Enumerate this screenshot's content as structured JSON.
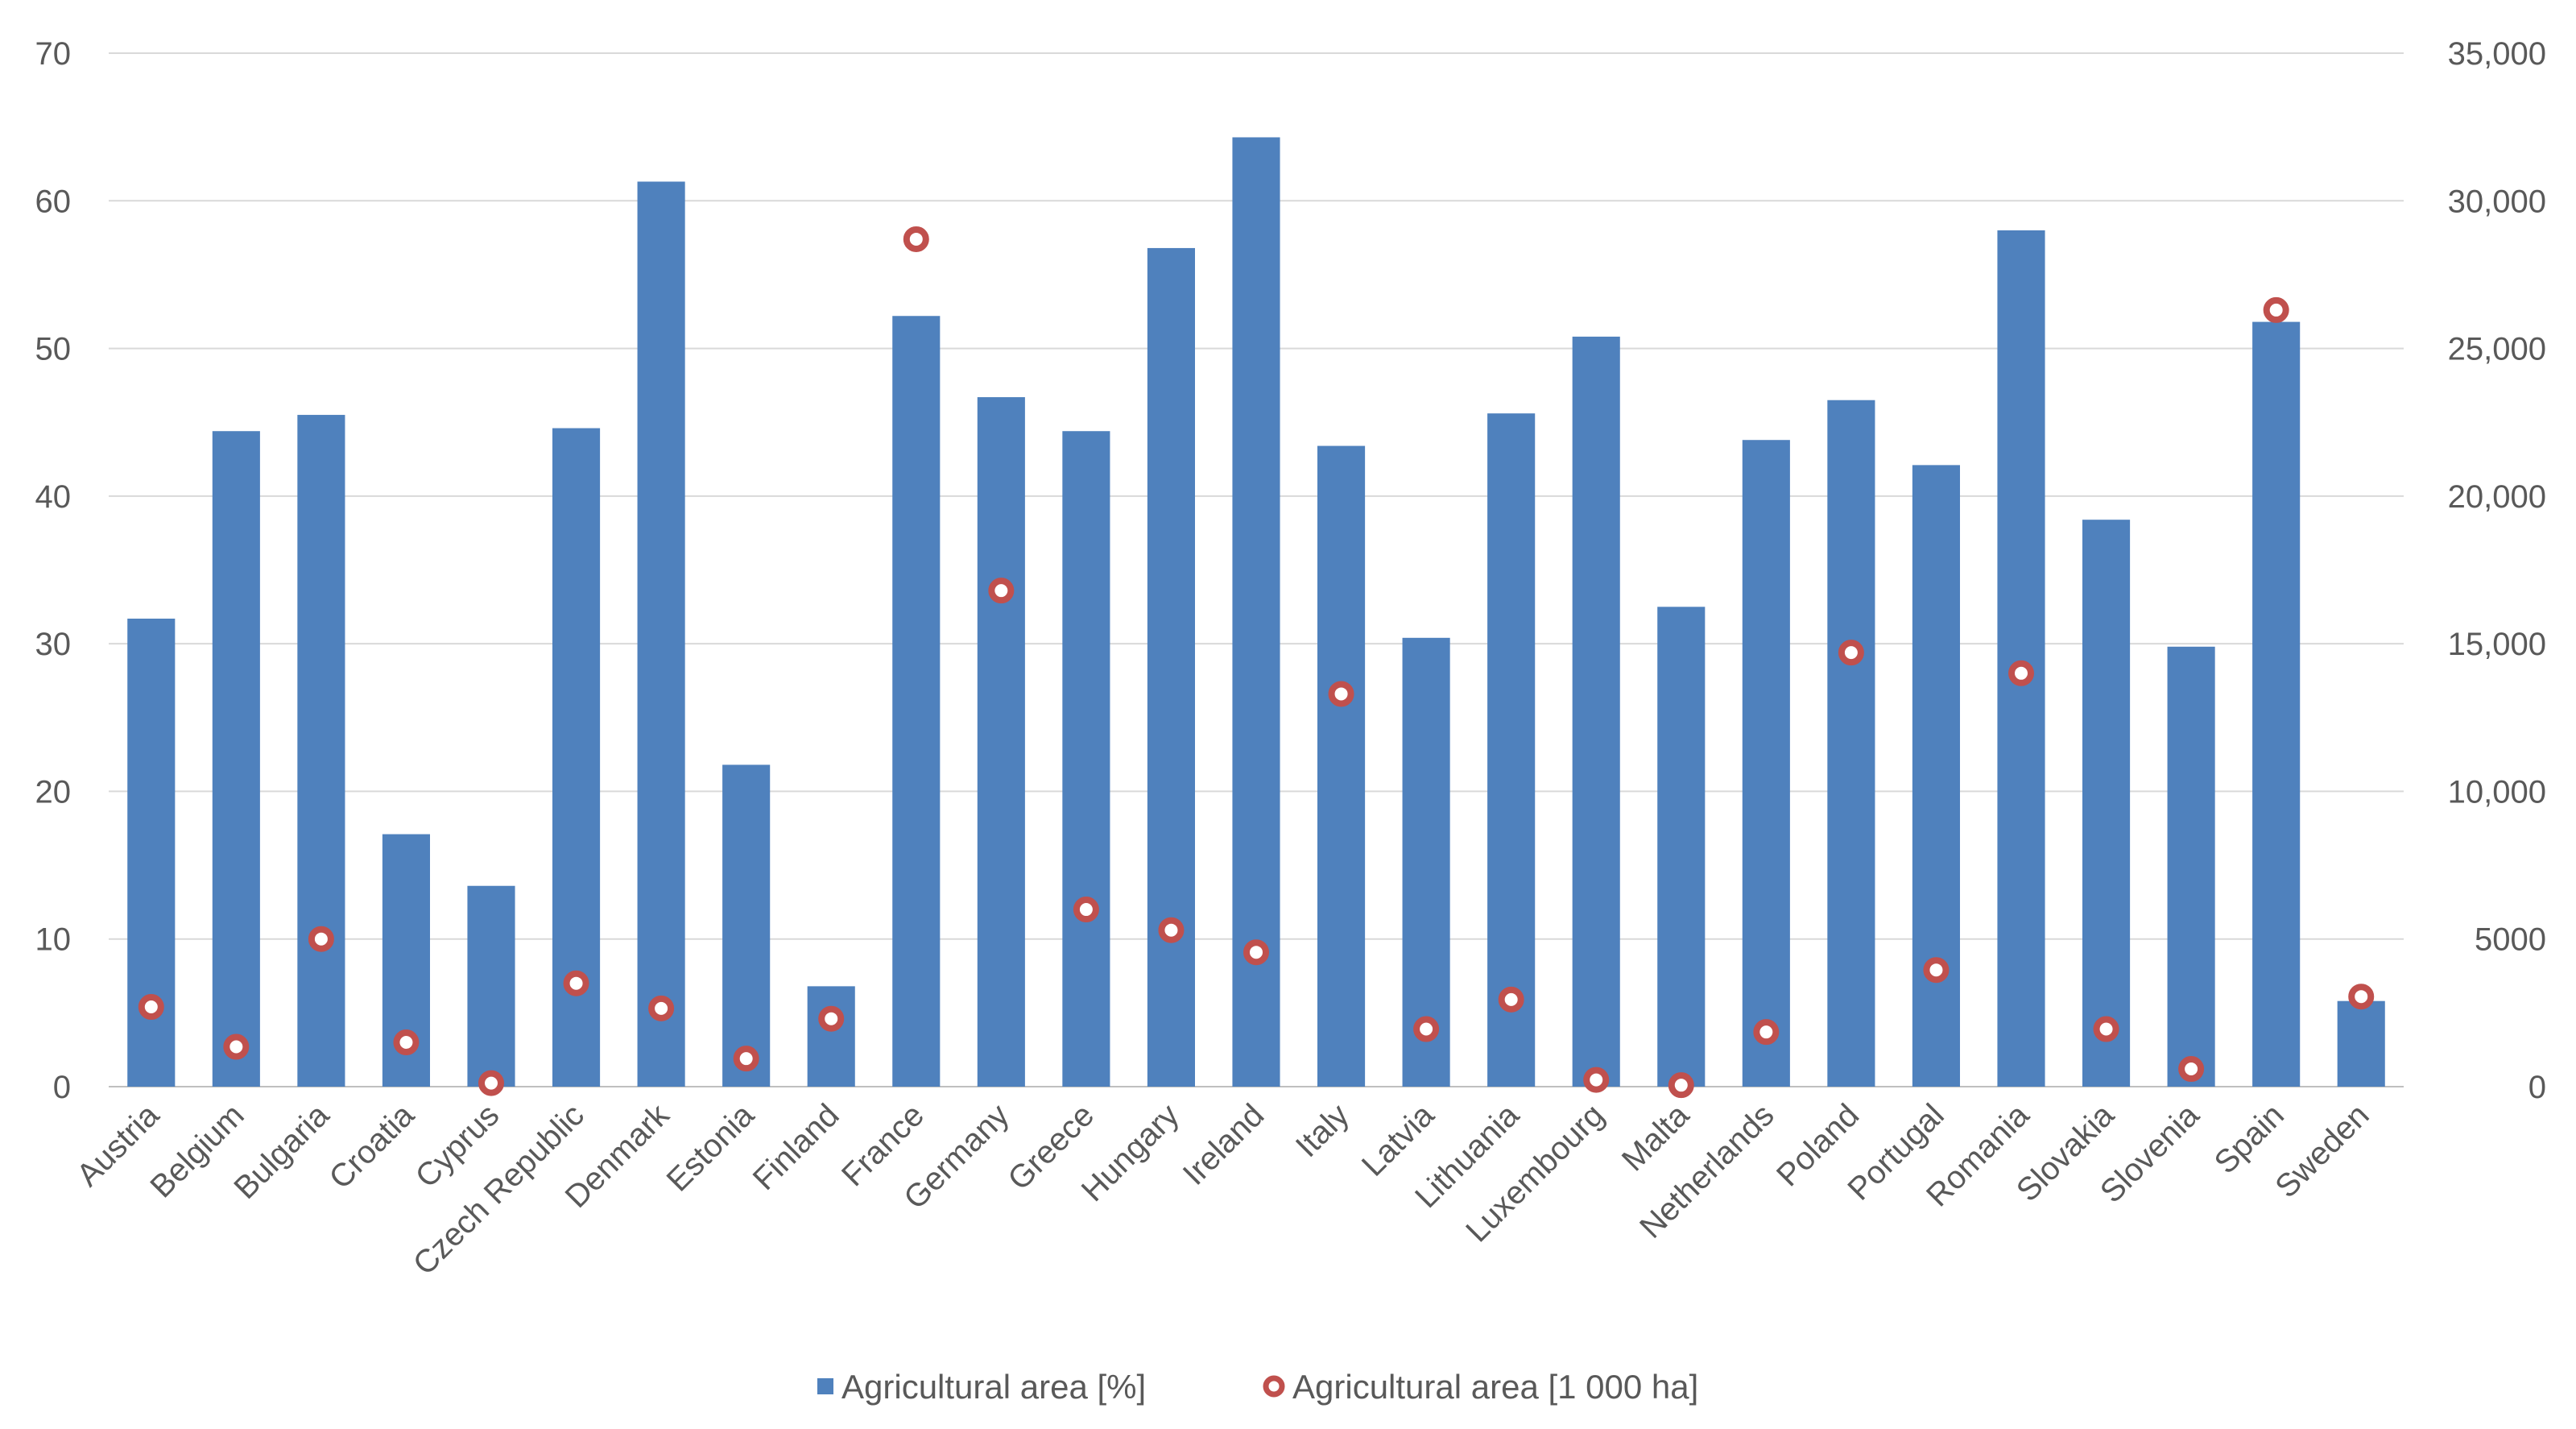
{
  "chart_data": {
    "type": "bar",
    "categories": [
      "Austria",
      "Belgium",
      "Bulgaria",
      "Croatia",
      "Cyprus",
      "Czech Republic",
      "Denmark",
      "Estonia",
      "Finland",
      "France",
      "Germany",
      "Greece",
      "Hungary",
      "Ireland",
      "Italy",
      "Latvia",
      "Lithuania",
      "Luxembourg",
      "Malta",
      "Netherlands",
      "Poland",
      "Portugal",
      "Romania",
      "Slovakia",
      "Slovenia",
      "Spain",
      "Sweden"
    ],
    "series": [
      {
        "name": "Agricultural area [%]",
        "type": "bar",
        "axis": "left",
        "color": "#4f81bd",
        "values": [
          31.7,
          44.4,
          45.5,
          17.1,
          13.6,
          44.6,
          61.3,
          21.8,
          6.8,
          52.2,
          46.7,
          44.4,
          56.8,
          64.3,
          43.4,
          30.4,
          45.6,
          50.8,
          32.5,
          43.8,
          46.5,
          42.1,
          58.0,
          38.4,
          29.8,
          51.8,
          5.8
        ]
      },
      {
        "name": "Agricultural area [1 000 ha]",
        "type": "scatter",
        "axis": "right",
        "color": "#c0504d",
        "values": [
          2700,
          1350,
          5000,
          1500,
          120,
          3500,
          2650,
          950,
          2300,
          28700,
          16800,
          6000,
          5300,
          4550,
          13300,
          1950,
          2950,
          230,
          50,
          1850,
          14700,
          3950,
          14000,
          1950,
          600,
          26300,
          3050
        ]
      }
    ],
    "y_left": {
      "ylim": [
        0,
        70
      ],
      "ticks": [
        0,
        10,
        20,
        30,
        40,
        50,
        60,
        70
      ],
      "tick_labels": [
        "0",
        "10",
        "20",
        "30",
        "40",
        "50",
        "60",
        "70"
      ]
    },
    "y_right": {
      "ylim": [
        0,
        35000
      ],
      "ticks": [
        0,
        5000,
        10000,
        15000,
        20000,
        25000,
        30000,
        35000
      ],
      "tick_labels": [
        "0",
        "5000",
        "10,000",
        "15,000",
        "20,000",
        "25,000",
        "30,000",
        "35,000"
      ]
    },
    "grid": true,
    "legend": {
      "position": "bottom",
      "entries": [
        "Agricultural area [%]",
        "Agricultural area [1 000 ha]"
      ]
    }
  }
}
